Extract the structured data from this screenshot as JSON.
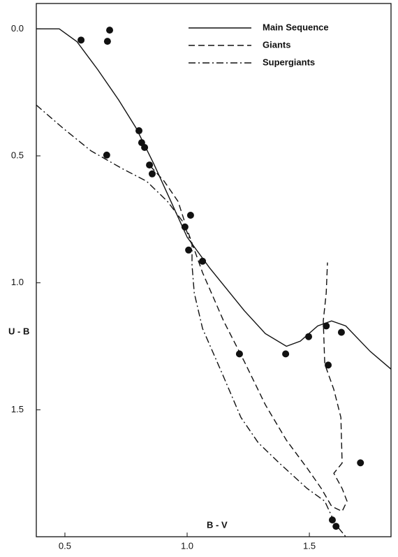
{
  "chart_data": {
    "type": "line",
    "x_label": "B - V",
    "y_label": "U - B",
    "xlim": [
      0.383,
      1.834
    ],
    "ylim": [
      -0.1,
      2.0
    ],
    "y_inverted": true,
    "xticks": [
      0.5,
      {
        "value": 1.0,
        "label": "1.0"
      },
      1.5
    ],
    "yticks": [
      {
        "value": 0,
        "label": "0.0"
      },
      0.5,
      {
        "value": 1.0,
        "label": "1.0"
      },
      1.5
    ],
    "color": "#111111",
    "series": [
      {
        "name": "Main Sequence",
        "style": "solid",
        "x": [
          0.383,
          0.477,
          0.549,
          0.634,
          0.72,
          0.791,
          0.863,
          0.934,
          1.0,
          1.091,
          1.234,
          1.32,
          1.406,
          1.463,
          1.534,
          1.591,
          1.649,
          1.749,
          1.834
        ],
        "values": [
          0.0,
          0.0,
          0.05,
          0.16,
          0.28,
          0.39,
          0.53,
          0.68,
          0.82,
          0.94,
          1.11,
          1.2,
          1.25,
          1.23,
          1.17,
          1.15,
          1.17,
          1.27,
          1.34
        ]
      },
      {
        "name": "Giants",
        "style": "dashed",
        "x": [
          0.849,
          0.906,
          0.963,
          1.0,
          1.063,
          1.149,
          1.234,
          1.32,
          1.406,
          1.491,
          1.549,
          1.591,
          1.634,
          1.654,
          1.634,
          1.6,
          1.634,
          1.629,
          1.6,
          1.563,
          1.557,
          1.569,
          1.574
        ],
        "values": [
          0.54,
          0.6,
          0.68,
          0.79,
          0.96,
          1.15,
          1.31,
          1.48,
          1.62,
          1.73,
          1.81,
          1.88,
          1.9,
          1.86,
          1.81,
          1.75,
          1.71,
          1.53,
          1.42,
          1.32,
          1.15,
          1.04,
          0.92
        ]
      },
      {
        "name": "Supergiants",
        "style": "dashdot",
        "x": [
          0.383,
          0.491,
          0.606,
          0.734,
          0.834,
          0.92,
          0.983,
          1.02,
          1.02,
          1.029,
          1.063,
          1.149,
          1.22,
          1.291,
          1.377,
          1.491,
          1.563,
          1.606,
          1.649
        ],
        "values": [
          0.3,
          0.39,
          0.48,
          0.55,
          0.6,
          0.68,
          0.76,
          0.85,
          0.93,
          1.04,
          1.18,
          1.37,
          1.53,
          1.63,
          1.71,
          1.81,
          1.86,
          1.95,
          2.0
        ]
      }
    ],
    "points": {
      "x": [
        0.566,
        0.674,
        0.683,
        0.803,
        0.814,
        0.826,
        0.671,
        0.846,
        0.857,
        1.014,
        0.991,
        1.006,
        1.063,
        1.214,
        1.403,
        1.497,
        1.569,
        1.631,
        1.577,
        1.709,
        1.594,
        1.609
      ],
      "values": [
        0.044,
        0.049,
        0.005,
        0.401,
        0.448,
        0.467,
        0.497,
        0.536,
        0.571,
        0.734,
        0.78,
        0.871,
        0.915,
        1.28,
        1.28,
        1.212,
        1.17,
        1.195,
        1.324,
        1.709,
        1.934,
        1.959
      ]
    }
  }
}
